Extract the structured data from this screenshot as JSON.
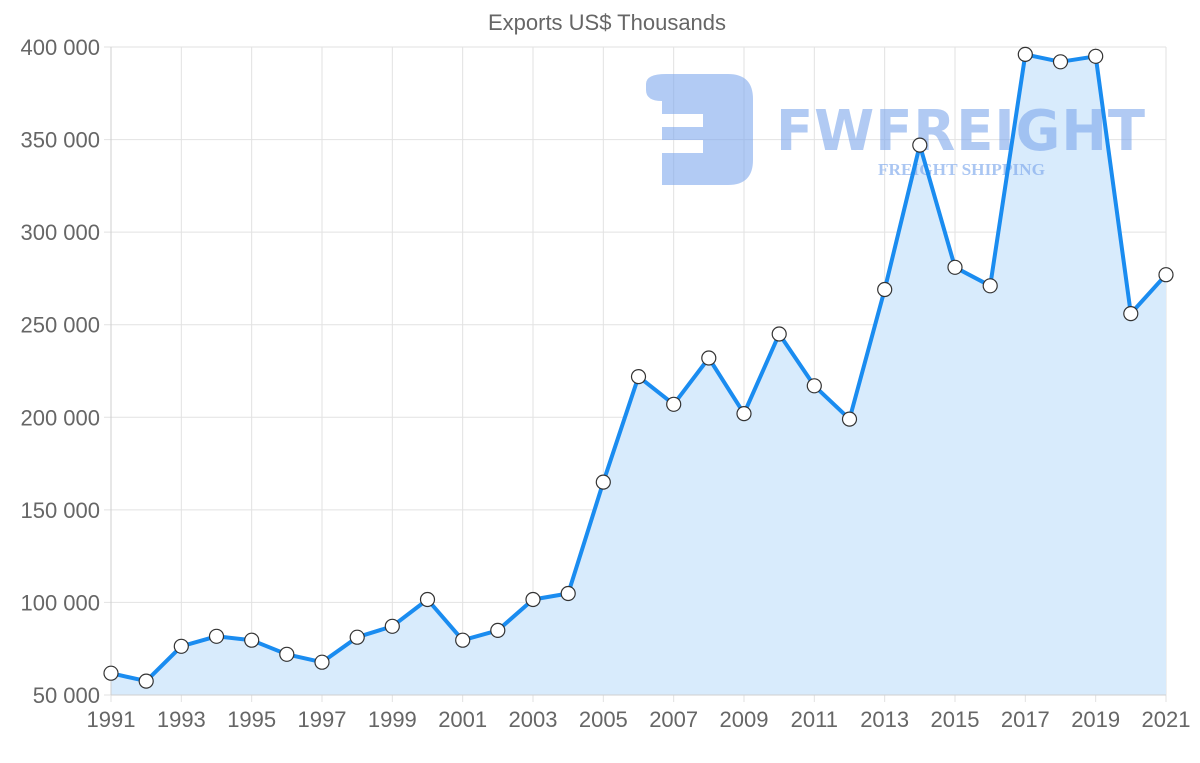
{
  "chart_data": {
    "type": "line",
    "title": "Exports US$ Thousands",
    "xlabel": "",
    "ylabel": "",
    "x": [
      1991,
      1992,
      1993,
      1994,
      1995,
      1996,
      1997,
      1998,
      1999,
      2000,
      2001,
      2002,
      2003,
      2004,
      2005,
      2006,
      2007,
      2008,
      2009,
      2010,
      2011,
      2012,
      2013,
      2014,
      2015,
      2016,
      2017,
      2018,
      2019,
      2020,
      2021
    ],
    "series": [
      {
        "name": "Exports US$ Thousands",
        "values": [
          61800,
          57500,
          76300,
          81700,
          79600,
          72000,
          67700,
          81200,
          87100,
          101600,
          79600,
          84900,
          101600,
          104800,
          165000,
          222000,
          207000,
          232000,
          202000,
          245000,
          217000,
          199000,
          269000,
          347000,
          281000,
          271000,
          396000,
          392000,
          395000,
          256000,
          277000
        ],
        "line_color": "#1a8cf0",
        "fill_color": "#d8ebfc",
        "point_fill": "#ffffff",
        "point_stroke": "#333333"
      }
    ],
    "ylim": [
      50000,
      400000
    ],
    "xlim": [
      1991,
      2021
    ],
    "y_ticks": [
      50000,
      100000,
      150000,
      200000,
      250000,
      300000,
      350000,
      400000
    ],
    "y_tick_labels": [
      "50 000",
      "100 000",
      "150 000",
      "200 000",
      "250 000",
      "300 000",
      "350 000",
      "400 000"
    ],
    "x_ticks": [
      1991,
      1993,
      1995,
      1997,
      1999,
      2001,
      2003,
      2005,
      2007,
      2009,
      2011,
      2013,
      2015,
      2017,
      2019,
      2021
    ],
    "x_tick_labels": [
      "1991",
      "1993",
      "1995",
      "1997",
      "1999",
      "2001",
      "2003",
      "2005",
      "2007",
      "2009",
      "2011",
      "2013",
      "2015",
      "2017",
      "2019",
      "2021"
    ],
    "grid": true,
    "legend": "none"
  },
  "watermark": {
    "brand": "FWFREIGHT",
    "tagline": "FREIGHT SHIPPING"
  }
}
